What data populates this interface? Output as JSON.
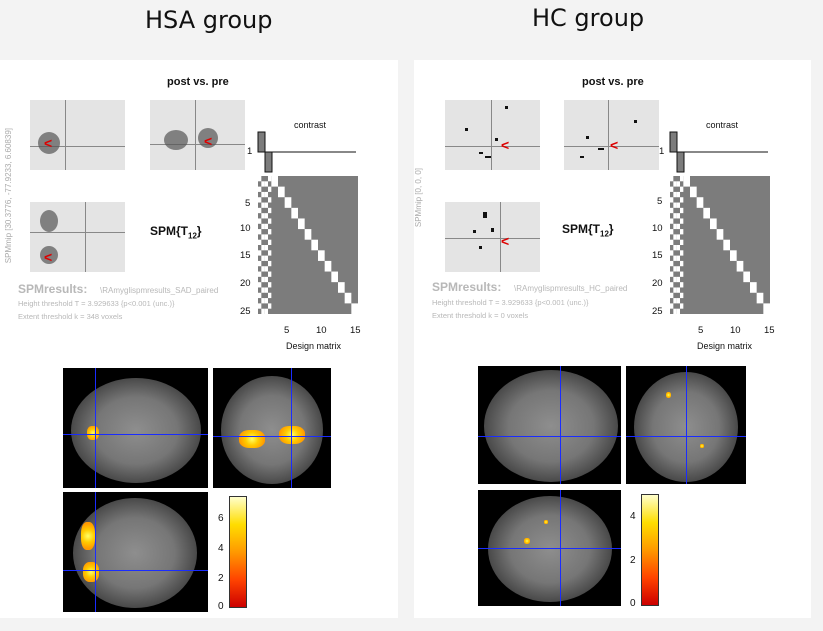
{
  "groups": {
    "left": {
      "title": "HSA group",
      "plot_title": "post vs. pre",
      "spm_label": "SPM{T",
      "spm_sub": "12",
      "spm_close": "}",
      "vertical_label": "SPMmip [30.3776, -77.9233, 6.60839]",
      "results_title": "SPMresults:",
      "results_file": "\\RAmyglispmresults_SAD_paired",
      "height_threshold": "Height threshold T = 3.929633 {p<0.001 (unc.)}",
      "extent_threshold": "Extent threshold k = 348 voxels",
      "contrast_label": "contrast",
      "contrast_tick": "1",
      "design_matrix_label": "Design matrix",
      "y_ticks": [
        "5",
        "10",
        "15",
        "20",
        "25"
      ],
      "x_ticks": [
        "5",
        "10",
        "15"
      ],
      "colorbar_ticks": [
        "6",
        "4",
        "2",
        "0"
      ]
    },
    "right": {
      "title": "HC group",
      "plot_title": "post vs. pre",
      "spm_label": "SPM{T",
      "spm_sub": "12",
      "spm_close": "}",
      "vertical_label": "SPMmip [0, 0, 0]",
      "results_title": "SPMresults:",
      "results_file": "\\RAmyglispmresults_HC_paired",
      "height_threshold": "Height threshold T = 3.929633 {p<0.001 (unc.)}",
      "extent_threshold": "Extent threshold k = 0 voxels",
      "contrast_label": "contrast",
      "contrast_tick": "1",
      "design_matrix_label": "Design matrix",
      "y_ticks": [
        "5",
        "10",
        "15",
        "20",
        "25"
      ],
      "x_ticks": [
        "5",
        "10",
        "15"
      ],
      "colorbar_ticks": [
        "4",
        "2",
        "0"
      ]
    }
  },
  "colors": {
    "crosshair": "#1a2cff",
    "arrow": "#dd0000",
    "background": "#f3f3f3"
  }
}
